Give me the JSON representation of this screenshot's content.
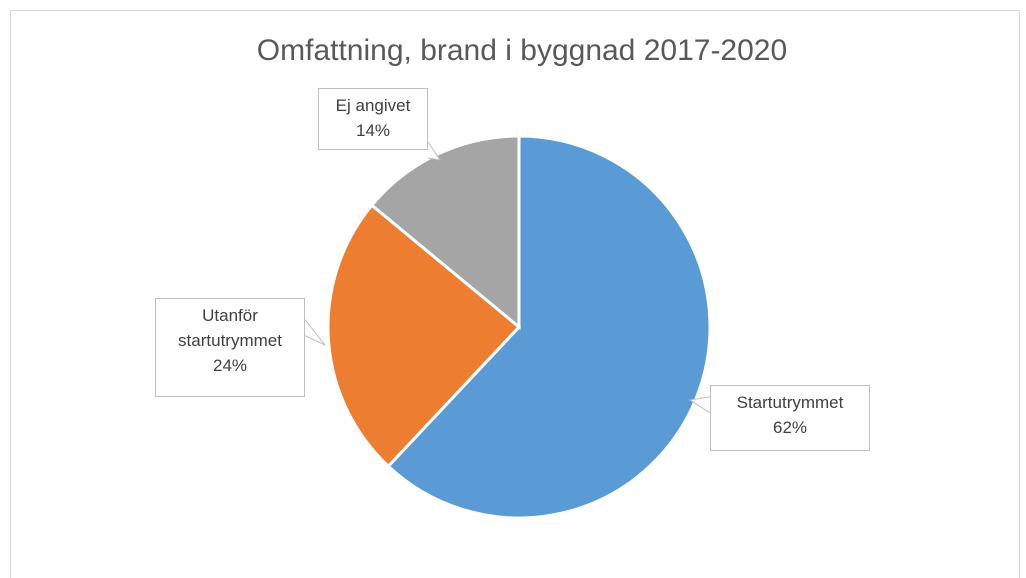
{
  "chart_data": {
    "type": "pie",
    "title": "Omfattning, brand i byggnad 2017-2020",
    "categories": [
      "Startutrymmet",
      "Utanför startutrymmet",
      "Ej angivet"
    ],
    "values": [
      62,
      24,
      14
    ],
    "value_labels": [
      "62%",
      "24%",
      "14%"
    ],
    "colors": [
      "#5b9bd5",
      "#ed7d31",
      "#a5a5a5"
    ]
  }
}
